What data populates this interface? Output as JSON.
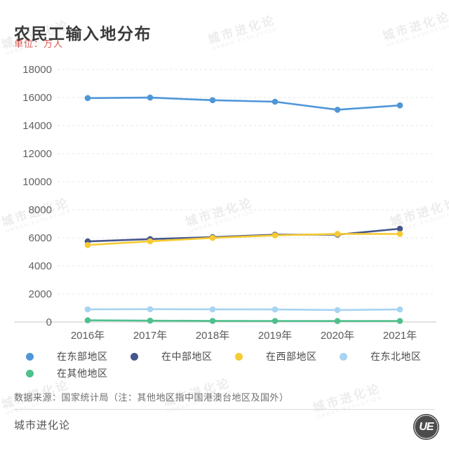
{
  "header": {
    "title": "农民工输入地分布",
    "unit_label": "单位：万人"
  },
  "watermark": {
    "line1": "城市进化论",
    "line2": "URBAN EVOLUTION"
  },
  "chart_data": {
    "type": "line",
    "title": "农民工输入地分布",
    "unit": "万人",
    "xlabel": "",
    "ylabel": "",
    "x": [
      "2016年",
      "2017年",
      "2018年",
      "2019年",
      "2020年",
      "2021年"
    ],
    "series": [
      {
        "name": "在东部地区",
        "color": "#4f96d8",
        "values": [
          15960,
          15993,
          15808,
          15700,
          15132,
          15438
        ]
      },
      {
        "name": "在中部地区",
        "color": "#47568c",
        "values": [
          5746,
          5912,
          6051,
          6223,
          6227,
          6652
        ]
      },
      {
        "name": "在西部地区",
        "color": "#f6cb33",
        "values": [
          5484,
          5754,
          5993,
          6173,
          6279,
          6280
        ]
      },
      {
        "name": "在东北地区",
        "color": "#a6d4f2",
        "values": [
          904,
          914,
          905,
          895,
          853,
          895
        ]
      },
      {
        "name": "在其他地区",
        "color": "#4fc08d",
        "values": [
          121,
          95,
          81,
          77,
          70,
          75
        ]
      }
    ],
    "ylim": [
      0,
      18000
    ],
    "ytick_step": 2000,
    "grid": "horizontal-dashed",
    "legend_position": "bottom"
  },
  "footer": {
    "source_note": "数据来源：国家统计局（注：其他地区指中国港澳台地区及国外）",
    "brand": "城市进化论",
    "logo_text": "UE"
  }
}
